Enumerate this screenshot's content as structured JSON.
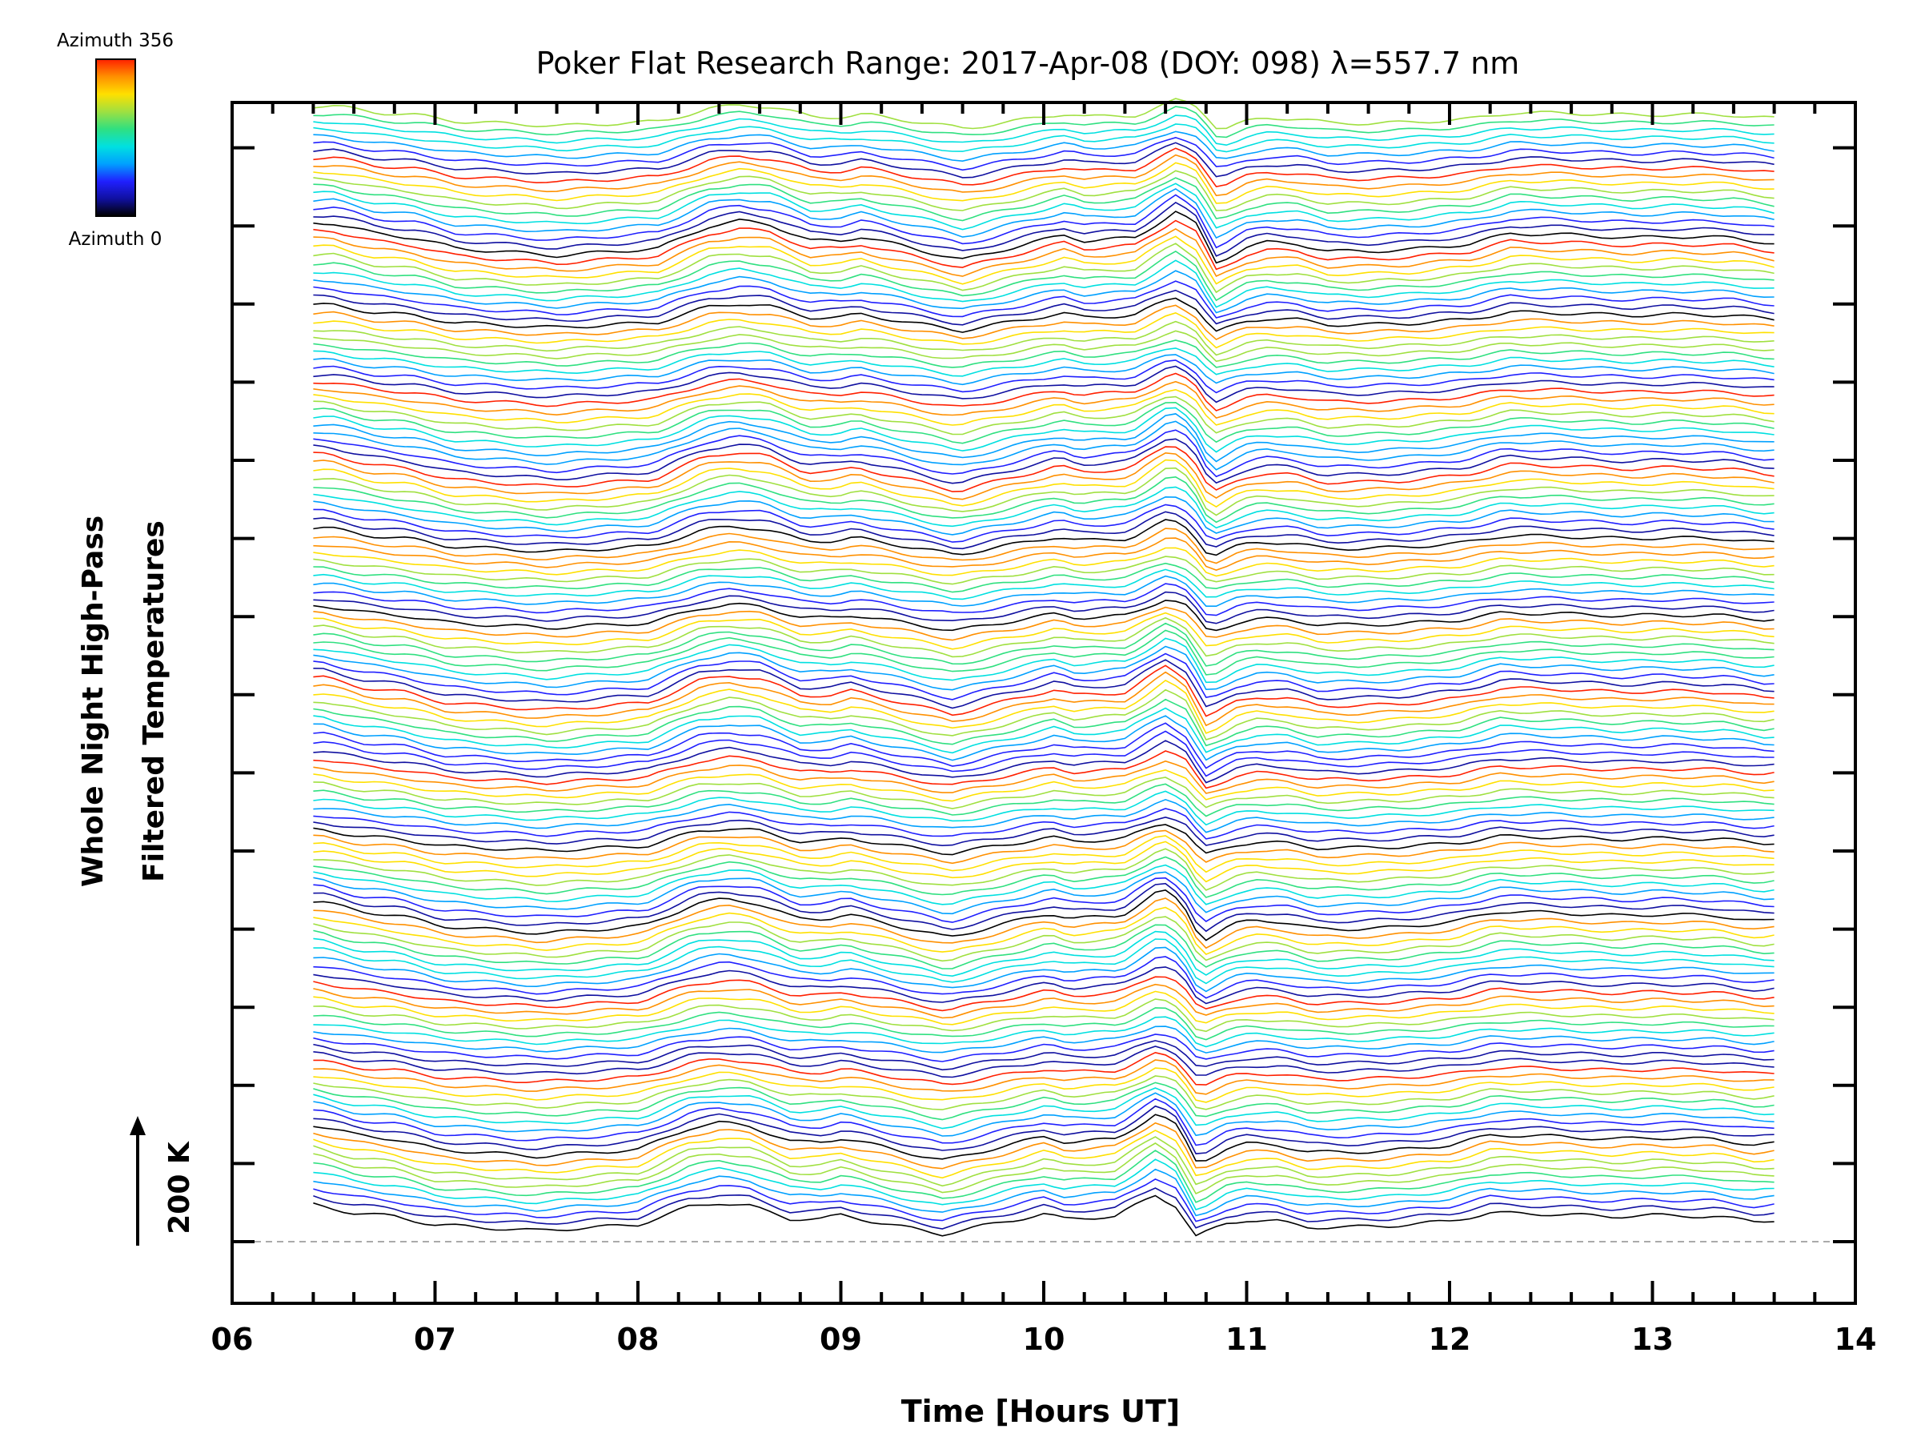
{
  "chart_data": {
    "type": "line",
    "title": "Poker Flat Research Range: 2017-Apr-08 (DOY: 098) λ=557.7 nm",
    "xlabel": "Time [Hours UT]",
    "ylabel": [
      "Whole Night High-Pass",
      "Filtered Temperatures"
    ],
    "scale_label": "200 K",
    "x_ticks": [
      "06",
      "07",
      "08",
      "09",
      "10",
      "11",
      "12",
      "13",
      "14"
    ],
    "xlim": [
      6,
      14
    ],
    "data_time_range": [
      6.4,
      13.6
    ],
    "colorbar": {
      "top_label": "Azimuth 356",
      "bottom_label": "Azimuth 0",
      "range": [
        0,
        356
      ],
      "colors": [
        "#000000",
        "#1010a0",
        "#2020ff",
        "#00a0ff",
        "#00e0e0",
        "#30e080",
        "#a0e040",
        "#ffe000",
        "#ff9000",
        "#ff2000"
      ]
    },
    "n_traces": 144,
    "trace_offset_K": 50,
    "profile_hours": [
      6.4,
      6.6,
      6.8,
      7.0,
      7.3,
      7.5,
      7.7,
      8.0,
      8.25,
      8.4,
      8.55,
      8.75,
      8.9,
      9.0,
      9.25,
      9.5,
      9.7,
      10.0,
      10.1,
      10.35,
      10.55,
      10.65,
      10.75,
      10.9,
      11.0,
      11.15,
      11.3,
      11.5,
      11.7,
      12.0,
      12.2,
      12.5,
      12.8,
      13.0,
      13.3,
      13.5,
      13.6
    ],
    "profile_K": [
      22,
      8,
      2,
      -12,
      -18,
      -22,
      -18,
      -12,
      18,
      25,
      20,
      -2,
      -2,
      4,
      -12,
      -28,
      -14,
      6,
      -2,
      2,
      38,
      20,
      -32,
      -10,
      -4,
      -6,
      -16,
      -16,
      -14,
      -6,
      8,
      6,
      2,
      4,
      2,
      -6,
      -4
    ]
  }
}
